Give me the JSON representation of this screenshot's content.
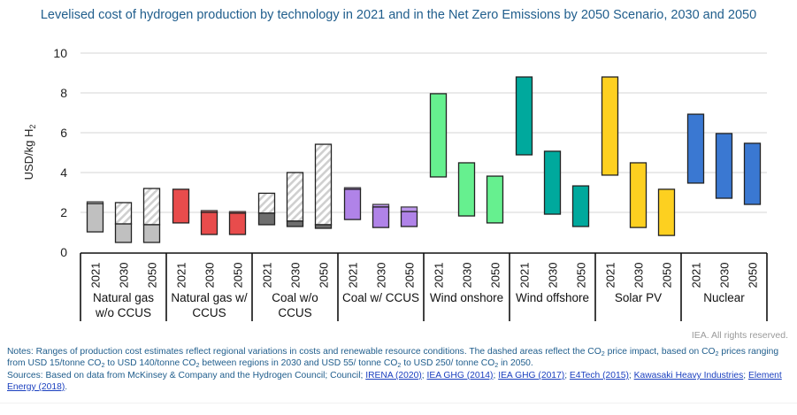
{
  "title": "Levelised cost of hydrogen production by technology in 2021 and in the Net Zero Emissions by 2050 Scenario, 2030 and 2050",
  "copyright": "IEA. All rights reserved.",
  "notes": {
    "notes_prefix": "Notes: Ranges of production cost estimates reflect regional variations in costs and renewable resource conditions. The dashed areas reflect the CO",
    "notes_mid1": " price impact, based on CO",
    "notes_mid2": " prices ranging from USD 15/tonne CO",
    "notes_mid3": " to USD 140/tonne CO",
    "notes_mid4": " between regions in 2030 and USD 55/ tonne CO",
    "notes_mid5": " to USD 250/ tonne CO",
    "notes_end": " in 2050.",
    "sub2": "2",
    "sources_prefix": "Sources: Based on data from McKinsey & Company and the Hydrogen Council; Council; ",
    "links": [
      "IRENA (2020)",
      "IEA GHG (2014)",
      "IEA GHG (2017)",
      "E4Tech (2015)",
      "Kawasaki Heavy Industries",
      "Element Energy (2018)"
    ],
    "sep": "; ",
    "sources_end": "."
  },
  "colors": {
    "natural_gas": "#c0c0c0",
    "natural_gas_ccus": "#e84c4c",
    "coal": "#6e6e6e",
    "coal_ccus": "#b083e8",
    "wind_onshore": "#66f08f",
    "wind_offshore": "#00a99d",
    "solar_pv": "#fdd020",
    "nuclear": "#3a78d2",
    "title": "#1f5d8c",
    "grid": "#e3e3e3"
  },
  "chart_data": {
    "type": "bar",
    "subtype": "floating-range",
    "title": "Levelised cost of hydrogen production by technology in 2021 and in the Net Zero Emissions by 2050 Scenario, 2030 and 2050",
    "ylabel": "USD/kg H2",
    "ylabel_main": "USD/kg H",
    "ylabel_sub": "2",
    "xlabel": "",
    "ylim": [
      0,
      10
    ],
    "yticks": [
      0,
      2,
      4,
      6,
      8,
      10
    ],
    "grid": true,
    "legend": "none",
    "years": [
      "2021",
      "2030",
      "2050"
    ],
    "groups": [
      {
        "name": "Natural gas w/o CCUS",
        "label_lines": [
          "Natural gas",
          "w/o CCUS"
        ],
        "color_key": "natural_gas",
        "bars": [
          {
            "year": "2021",
            "low": 1.02,
            "high": 2.44,
            "co2_high": 2.53
          },
          {
            "year": "2030",
            "low": 0.49,
            "high": 1.42,
            "co2_high": 2.49
          },
          {
            "year": "2050",
            "low": 0.49,
            "high": 1.38,
            "co2_high": 3.2
          }
        ]
      },
      {
        "name": "Natural gas w/ CCUS",
        "label_lines": [
          "Natural gas w/",
          "CCUS"
        ],
        "color_key": "natural_gas_ccus",
        "bars": [
          {
            "year": "2021",
            "low": 1.47,
            "high": 3.16,
            "co2_high": 3.16
          },
          {
            "year": "2030",
            "low": 0.89,
            "high": 2.0,
            "co2_high": 2.09
          },
          {
            "year": "2050",
            "low": 0.89,
            "high": 1.96,
            "co2_high": 2.04
          }
        ]
      },
      {
        "name": "Coal w/o CCUS",
        "label_lines": [
          "Coal w/o",
          "CCUS"
        ],
        "color_key": "coal",
        "bars": [
          {
            "year": "2021",
            "low": 1.38,
            "high": 1.96,
            "co2_high": 2.96
          },
          {
            "year": "2030",
            "low": 1.29,
            "high": 1.56,
            "co2_high": 4.0
          },
          {
            "year": "2050",
            "low": 1.2,
            "high": 1.38,
            "co2_high": 5.42
          }
        ]
      },
      {
        "name": "Coal w/ CCUS",
        "label_lines": [
          "Coal w/ CCUS"
        ],
        "color_key": "coal_ccus",
        "bars": [
          {
            "year": "2021",
            "low": 1.64,
            "high": 3.16,
            "co2_high": 3.24
          },
          {
            "year": "2030",
            "low": 1.24,
            "high": 2.27,
            "co2_high": 2.4
          },
          {
            "year": "2050",
            "low": 1.29,
            "high": 2.04,
            "co2_high": 2.27
          }
        ]
      },
      {
        "name": "Wind onshore",
        "label_lines": [
          "Wind onshore"
        ],
        "color_key": "wind_onshore",
        "bars": [
          {
            "year": "2021",
            "low": 3.78,
            "high": 7.96,
            "co2_high": 7.96
          },
          {
            "year": "2030",
            "low": 1.82,
            "high": 4.49,
            "co2_high": 4.49
          },
          {
            "year": "2050",
            "low": 1.47,
            "high": 3.82,
            "co2_high": 3.82
          }
        ]
      },
      {
        "name": "Wind offshore",
        "label_lines": [
          "Wind offshore"
        ],
        "color_key": "wind_offshore",
        "bars": [
          {
            "year": "2021",
            "low": 4.89,
            "high": 8.8,
            "co2_high": 8.8
          },
          {
            "year": "2030",
            "low": 1.91,
            "high": 5.07,
            "co2_high": 5.07
          },
          {
            "year": "2050",
            "low": 1.29,
            "high": 3.33,
            "co2_high": 3.33
          }
        ]
      },
      {
        "name": "Solar PV",
        "label_lines": [
          "Solar PV"
        ],
        "color_key": "solar_pv",
        "bars": [
          {
            "year": "2021",
            "low": 3.87,
            "high": 8.8,
            "co2_high": 8.8
          },
          {
            "year": "2030",
            "low": 1.24,
            "high": 4.49,
            "co2_high": 4.49
          },
          {
            "year": "2050",
            "low": 0.84,
            "high": 3.16,
            "co2_high": 3.16
          }
        ]
      },
      {
        "name": "Nuclear",
        "label_lines": [
          "Nuclear"
        ],
        "color_key": "nuclear",
        "bars": [
          {
            "year": "2021",
            "low": 3.47,
            "high": 6.93,
            "co2_high": 6.93
          },
          {
            "year": "2030",
            "low": 2.71,
            "high": 5.96,
            "co2_high": 5.96
          },
          {
            "year": "2050",
            "low": 2.4,
            "high": 5.47,
            "co2_high": 5.47
          }
        ]
      }
    ]
  }
}
